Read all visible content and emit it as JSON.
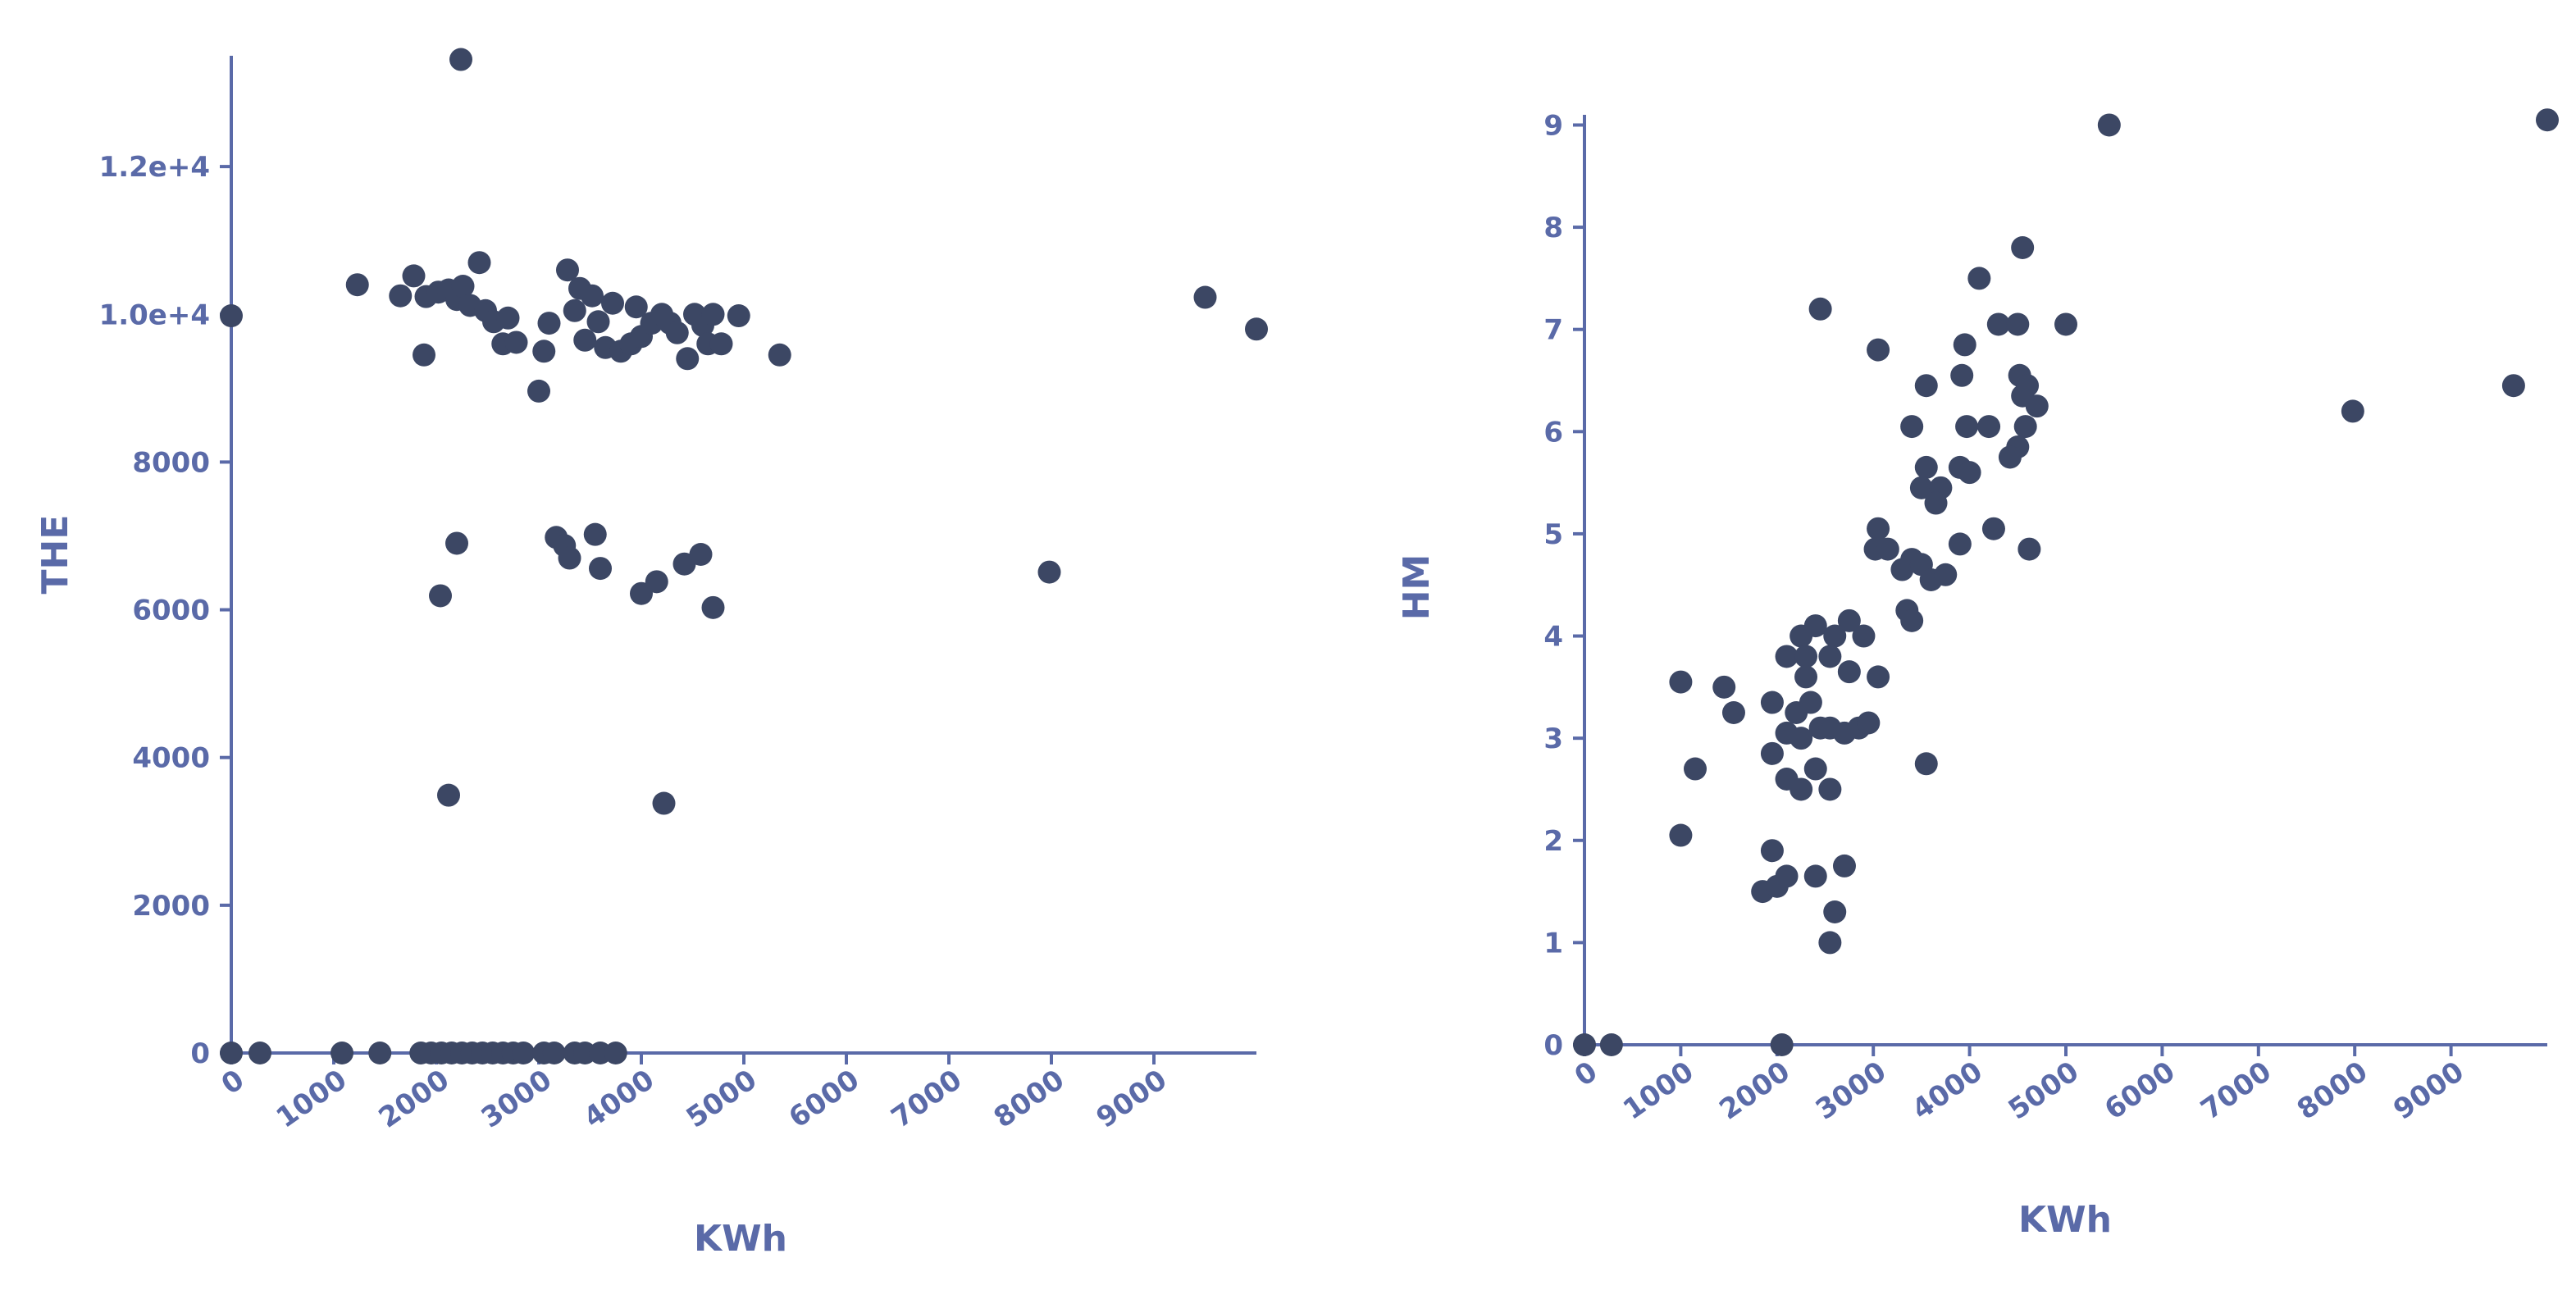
{
  "chart_data": [
    {
      "type": "scatter",
      "xlabel": "KWh",
      "ylabel": "THE",
      "xlim": [
        0,
        10000
      ],
      "ylim": [
        0,
        13500
      ],
      "x_ticks": [
        0,
        1000,
        2000,
        3000,
        4000,
        5000,
        6000,
        7000,
        8000,
        9000
      ],
      "x_tick_labels": [
        "0",
        "1000",
        "2000",
        "3000",
        "4000",
        "5000",
        "6000",
        "7000",
        "8000",
        "9000"
      ],
      "y_ticks": [
        0,
        2000,
        4000,
        6000,
        8000,
        10000,
        12000
      ],
      "y_tick_labels": [
        "0",
        "2000",
        "4000",
        "6000",
        "8000",
        "1.0e+4",
        "1.2e+4"
      ],
      "grid": false,
      "points": [
        [
          2240,
          13450
        ],
        [
          0,
          9980
        ],
        [
          1230,
          10400
        ],
        [
          1650,
          10250
        ],
        [
          1780,
          10520
        ],
        [
          1900,
          10240
        ],
        [
          2020,
          10300
        ],
        [
          2120,
          10330
        ],
        [
          2200,
          10200
        ],
        [
          2260,
          10380
        ],
        [
          2330,
          10120
        ],
        [
          2420,
          10700
        ],
        [
          2480,
          10050
        ],
        [
          2560,
          9900
        ],
        [
          2650,
          9600
        ],
        [
          2700,
          9950
        ],
        [
          2780,
          9620
        ],
        [
          1880,
          9450
        ],
        [
          3000,
          8960
        ],
        [
          3050,
          9500
        ],
        [
          3100,
          9880
        ],
        [
          3280,
          10600
        ],
        [
          3350,
          10050
        ],
        [
          3400,
          10350
        ],
        [
          3450,
          9650
        ],
        [
          3520,
          10250
        ],
        [
          3580,
          9900
        ],
        [
          3650,
          9550
        ],
        [
          3720,
          10150
        ],
        [
          3800,
          9500
        ],
        [
          3900,
          9600
        ],
        [
          3950,
          10100
        ],
        [
          4000,
          9700
        ],
        [
          4100,
          9880
        ],
        [
          4200,
          10000
        ],
        [
          4280,
          9880
        ],
        [
          4350,
          9750
        ],
        [
          4450,
          9400
        ],
        [
          4520,
          10000
        ],
        [
          4600,
          9850
        ],
        [
          4650,
          9600
        ],
        [
          4700,
          10000
        ],
        [
          4780,
          9600
        ],
        [
          4950,
          9980
        ],
        [
          5350,
          9450
        ],
        [
          9500,
          10230
        ],
        [
          10000,
          9800
        ],
        [
          2040,
          6190
        ],
        [
          2200,
          6900
        ],
        [
          3170,
          6980
        ],
        [
          3250,
          6870
        ],
        [
          3300,
          6700
        ],
        [
          3550,
          7020
        ],
        [
          3600,
          6560
        ],
        [
          4000,
          6220
        ],
        [
          4150,
          6380
        ],
        [
          4420,
          6620
        ],
        [
          4580,
          6750
        ],
        [
          4700,
          6030
        ],
        [
          7980,
          6510
        ],
        [
          2120,
          3490
        ],
        [
          4220,
          3380
        ],
        [
          0,
          0
        ],
        [
          280,
          0
        ],
        [
          1080,
          0
        ],
        [
          1450,
          0
        ],
        [
          1850,
          0
        ],
        [
          1950,
          0
        ],
        [
          2050,
          0
        ],
        [
          2150,
          0
        ],
        [
          2250,
          0
        ],
        [
          2350,
          0
        ],
        [
          2450,
          0
        ],
        [
          2550,
          0
        ],
        [
          2650,
          0
        ],
        [
          2750,
          0
        ],
        [
          2850,
          0
        ],
        [
          3050,
          0
        ],
        [
          3150,
          0
        ],
        [
          3350,
          0
        ],
        [
          3450,
          0
        ],
        [
          3600,
          0
        ],
        [
          3750,
          0
        ]
      ]
    },
    {
      "type": "scatter",
      "xlabel": "KWh",
      "ylabel": "HM",
      "xlim": [
        0,
        10000
      ],
      "ylim": [
        0,
        9.1
      ],
      "x_ticks": [
        0,
        1000,
        2000,
        3000,
        4000,
        5000,
        6000,
        7000,
        8000,
        9000
      ],
      "x_tick_labels": [
        "0",
        "1000",
        "2000",
        "3000",
        "4000",
        "5000",
        "6000",
        "7000",
        "8000",
        "9000"
      ],
      "y_ticks": [
        0,
        1,
        2,
        3,
        4,
        5,
        6,
        7,
        8,
        9
      ],
      "y_tick_labels": [
        "0",
        "1",
        "2",
        "3",
        "4",
        "5",
        "6",
        "7",
        "8",
        "9"
      ],
      "grid": false,
      "points": [
        [
          10000,
          9.05
        ],
        [
          5450,
          9.0
        ],
        [
          4550,
          7.8
        ],
        [
          4100,
          7.5
        ],
        [
          2450,
          7.2
        ],
        [
          4300,
          7.05
        ],
        [
          4500,
          7.05
        ],
        [
          5000,
          7.05
        ],
        [
          3050,
          6.8
        ],
        [
          3950,
          6.85
        ],
        [
          3550,
          6.45
        ],
        [
          3920,
          6.55
        ],
        [
          4520,
          6.55
        ],
        [
          4600,
          6.45
        ],
        [
          4550,
          6.35
        ],
        [
          4700,
          6.25
        ],
        [
          4580,
          6.05
        ],
        [
          4200,
          6.05
        ],
        [
          4500,
          5.85
        ],
        [
          4420,
          5.75
        ],
        [
          3400,
          6.05
        ],
        [
          3970,
          6.05
        ],
        [
          7980,
          6.2
        ],
        [
          9650,
          6.45
        ],
        [
          3550,
          5.65
        ],
        [
          3500,
          5.45
        ],
        [
          3700,
          5.45
        ],
        [
          3900,
          5.65
        ],
        [
          4000,
          5.6
        ],
        [
          3650,
          5.3
        ],
        [
          3050,
          5.05
        ],
        [
          3020,
          4.85
        ],
        [
          3150,
          4.85
        ],
        [
          3300,
          4.65
        ],
        [
          3400,
          4.75
        ],
        [
          3500,
          4.7
        ],
        [
          3600,
          4.55
        ],
        [
          3750,
          4.6
        ],
        [
          3900,
          4.9
        ],
        [
          4250,
          5.05
        ],
        [
          4620,
          4.85
        ],
        [
          3350,
          4.25
        ],
        [
          3400,
          4.15
        ],
        [
          2250,
          4.0
        ],
        [
          2400,
          4.1
        ],
        [
          2600,
          4.0
        ],
        [
          2750,
          4.15
        ],
        [
          2900,
          4.0
        ],
        [
          2100,
          3.8
        ],
        [
          2300,
          3.8
        ],
        [
          2550,
          3.8
        ],
        [
          2300,
          3.6
        ],
        [
          2750,
          3.65
        ],
        [
          3050,
          3.6
        ],
        [
          1000,
          3.55
        ],
        [
          1450,
          3.5
        ],
        [
          1550,
          3.25
        ],
        [
          1950,
          3.35
        ],
        [
          2200,
          3.25
        ],
        [
          2350,
          3.35
        ],
        [
          2100,
          3.05
        ],
        [
          2250,
          3.0
        ],
        [
          2450,
          3.1
        ],
        [
          2550,
          3.1
        ],
        [
          2700,
          3.05
        ],
        [
          2850,
          3.1
        ],
        [
          2950,
          3.15
        ],
        [
          3550,
          2.75
        ],
        [
          1150,
          2.7
        ],
        [
          1950,
          2.85
        ],
        [
          2100,
          2.6
        ],
        [
          2250,
          2.5
        ],
        [
          2400,
          2.7
        ],
        [
          2550,
          2.5
        ],
        [
          1000,
          2.05
        ],
        [
          1950,
          1.9
        ],
        [
          1850,
          1.5
        ],
        [
          2000,
          1.55
        ],
        [
          2100,
          1.65
        ],
        [
          2400,
          1.65
        ],
        [
          2700,
          1.75
        ],
        [
          2600,
          1.3
        ],
        [
          2550,
          1.0
        ],
        [
          2050,
          0.0
        ],
        [
          0,
          0.0
        ],
        [
          280,
          0.0
        ]
      ]
    }
  ]
}
